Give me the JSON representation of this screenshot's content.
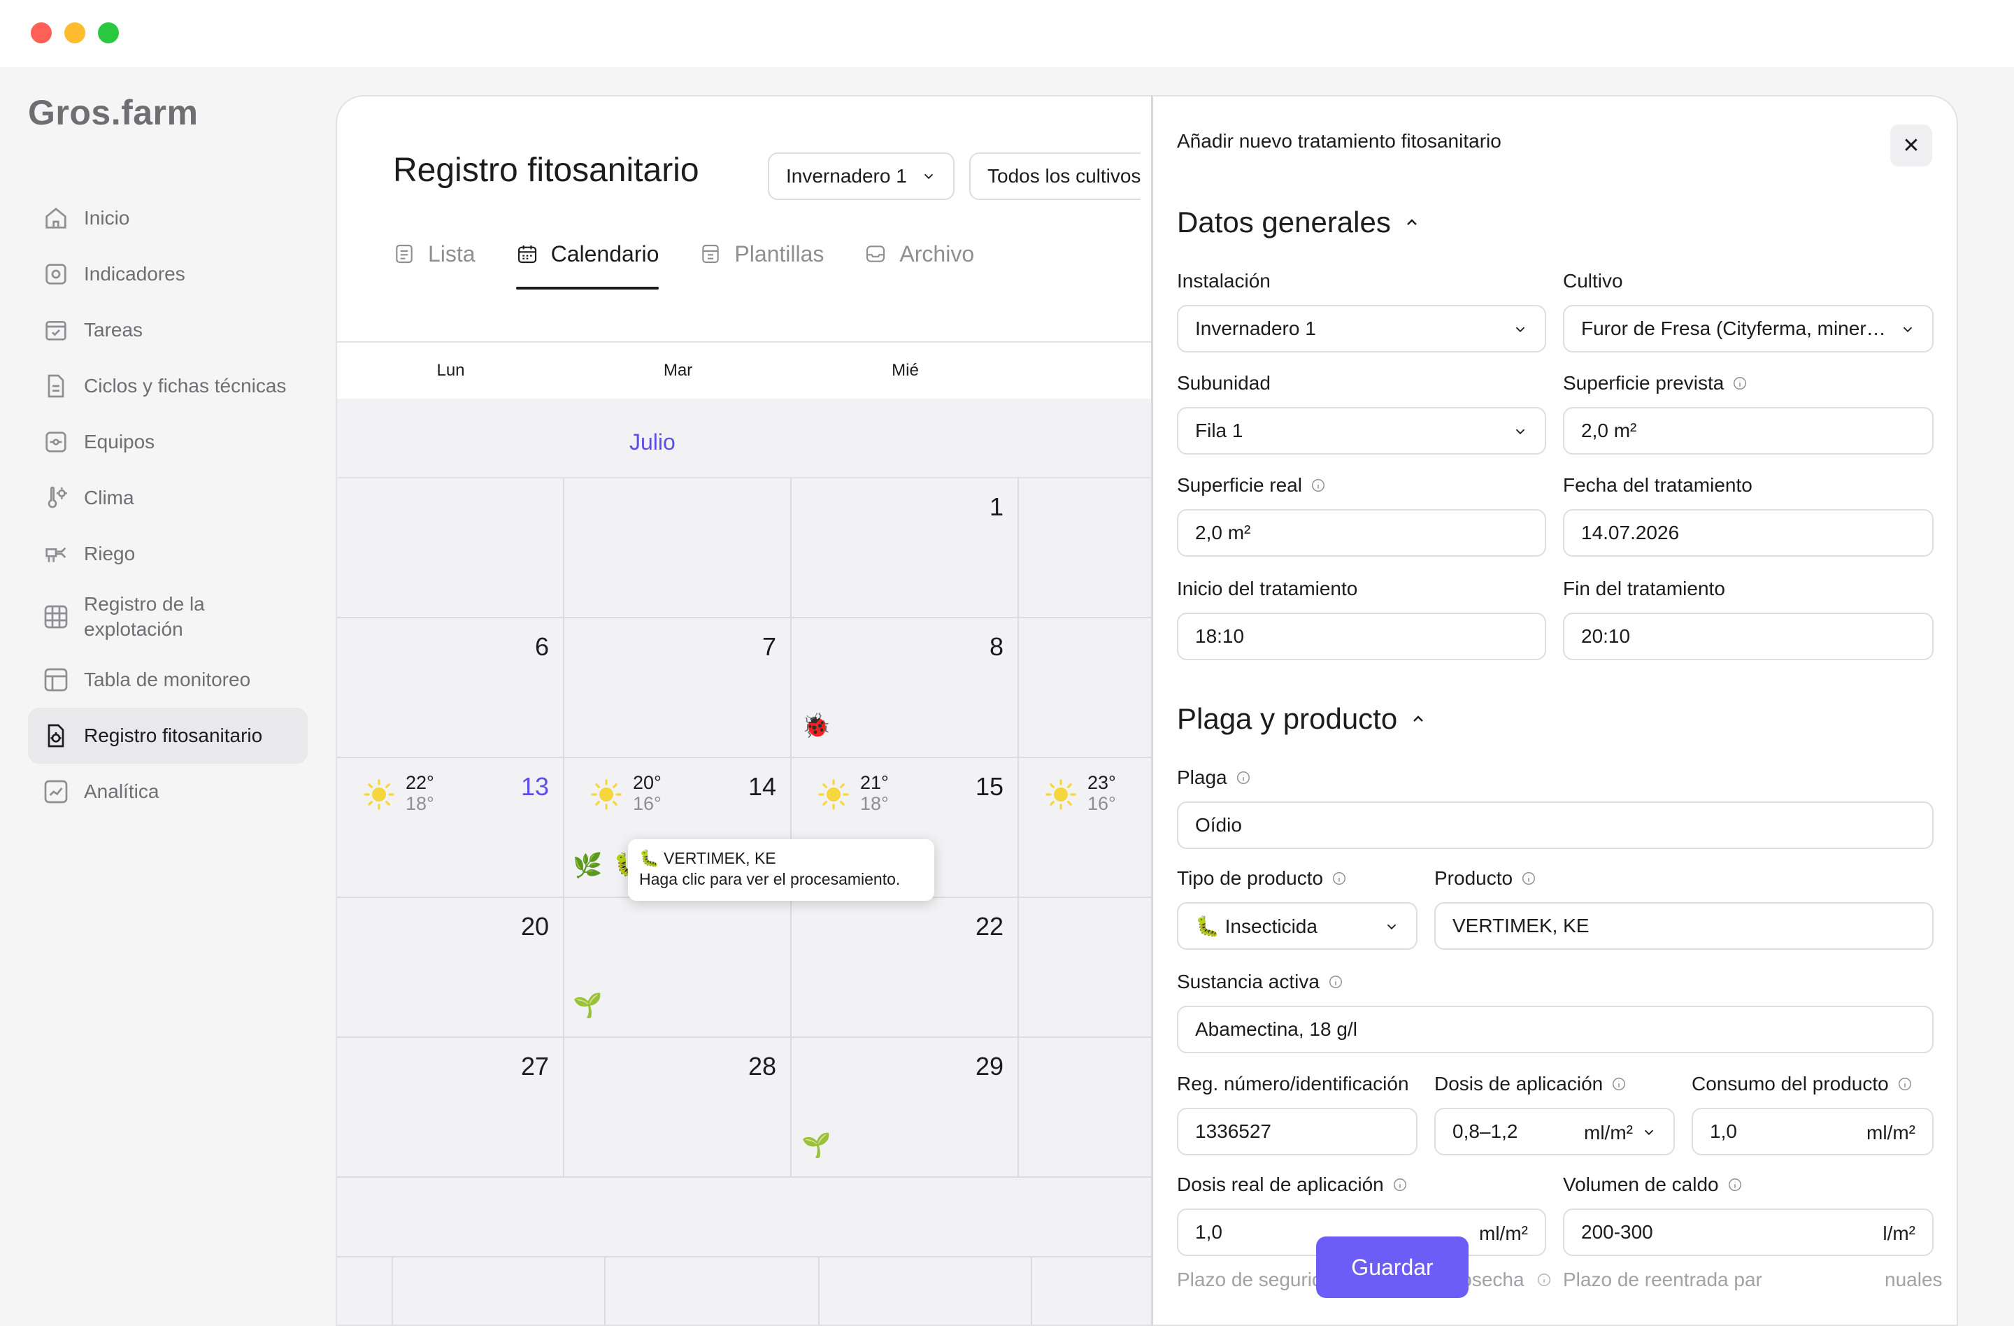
{
  "app": {
    "logo": "Gros.farm"
  },
  "sidebar": {
    "items": [
      {
        "label": "Inicio",
        "icon": "home-icon"
      },
      {
        "label": "Indicadores",
        "icon": "indicators-icon"
      },
      {
        "label": "Tareas",
        "icon": "tasks-icon"
      },
      {
        "label": "Ciclos y fichas técnicas",
        "icon": "document-icon"
      },
      {
        "label": "Equipos",
        "icon": "equipment-icon"
      },
      {
        "label": "Clima",
        "icon": "climate-icon"
      },
      {
        "label": "Riego",
        "icon": "irrigation-icon"
      },
      {
        "label": "Registro de la explotación",
        "icon": "grid-icon"
      },
      {
        "label": "Tabla de monitoreo",
        "icon": "table-icon"
      },
      {
        "label": "Registro fitosanitario",
        "icon": "phyto-icon",
        "active": true
      },
      {
        "label": "Analítica",
        "icon": "analytics-icon"
      }
    ]
  },
  "main": {
    "title": "Registro fitosanitario",
    "facility_select": "Invernadero 1",
    "crop_select": "Todos los cultivos",
    "tabs": [
      {
        "label": "Lista",
        "icon": "list-icon"
      },
      {
        "label": "Calendario",
        "icon": "calendar-icon",
        "active": true
      },
      {
        "label": "Plantillas",
        "icon": "templates-icon"
      },
      {
        "label": "Archivo",
        "icon": "archive-icon"
      }
    ]
  },
  "calendar": {
    "weekdays": [
      "Lun",
      "Mar",
      "Mié"
    ],
    "month": "Julio",
    "rows": [
      [
        "",
        "",
        "1",
        ""
      ],
      [
        "6",
        "7",
        "8",
        ""
      ],
      [
        "13",
        "14",
        "15",
        ""
      ],
      [
        "20",
        "",
        "22",
        ""
      ],
      [
        "27",
        "28",
        "29",
        ""
      ]
    ],
    "today": "13",
    "weather": [
      {
        "hi": "22°",
        "lo": "18°"
      },
      {
        "hi": "20°",
        "lo": "16°"
      },
      {
        "hi": "21°",
        "lo": "18°"
      },
      {
        "hi": "23°",
        "lo": "16°"
      }
    ],
    "icons": {
      "ladybug": "🐞",
      "herb": "🌿",
      "caterpillar": "🐛",
      "seedling": "🌱"
    },
    "tooltip": {
      "title": "🐛 VERTIMEK, KE",
      "text": "Haga clic para ver el procesamiento."
    }
  },
  "drawer": {
    "title": "Añadir nuevo tratamiento fitosanitario",
    "close": "✕",
    "general": {
      "heading": "Datos generales",
      "installation_label": "Instalación",
      "installation_value": "Invernadero 1",
      "crop_label": "Cultivo",
      "crop_value": "Furor de Fresa (Cityferma, mineral wool)",
      "subunit_label": "Subunidad",
      "subunit_value": "Fila 1",
      "planned_area_label": "Superficie prevista",
      "planned_area_value": "2,0 m²",
      "real_area_label": "Superficie real",
      "real_area_value": "2,0 m²",
      "date_label": "Fecha del tratamiento",
      "date_value": "14.07.2026",
      "start_label": "Inicio del tratamiento",
      "start_value": "18:10",
      "end_label": "Fin del tratamiento",
      "end_value": "20:10"
    },
    "pest": {
      "heading": "Plaga y producto",
      "pest_label": "Plaga",
      "pest_value": "Oídio",
      "product_type_label": "Tipo de producto",
      "product_type_value": "🐛 Insecticida",
      "product_label": "Producto",
      "product_value": "VERTIMEK, KE",
      "active_label": "Sustancia activa",
      "active_value": "Abamectina, 18 g/l",
      "reg_label": "Reg. número/identificación",
      "reg_value": "1336527",
      "dose_label": "Dosis de aplicación",
      "dose_value": "0,8–1,2",
      "dose_unit": "ml/m²",
      "consumption_label": "Consumo del producto",
      "consumption_value": "1,0",
      "consumption_unit": "ml/m²",
      "real_dose_label": "Dosis real de aplicación",
      "real_dose_value": "1,0",
      "real_dose_unit": "ml/m²",
      "volume_label": "Volumen de caldo",
      "volume_value": "200-300",
      "volume_unit": "l/m²",
      "safety_label": "Plazo de seguridad antes de la cosecha",
      "reentry_label": "Plazo de reentrada par",
      "manual_fragment": "nuales"
    },
    "save": "Guardar"
  },
  "colors": {
    "accent": "#6b5df6",
    "today": "#5b4fe6",
    "sun": "#f5d63d"
  }
}
